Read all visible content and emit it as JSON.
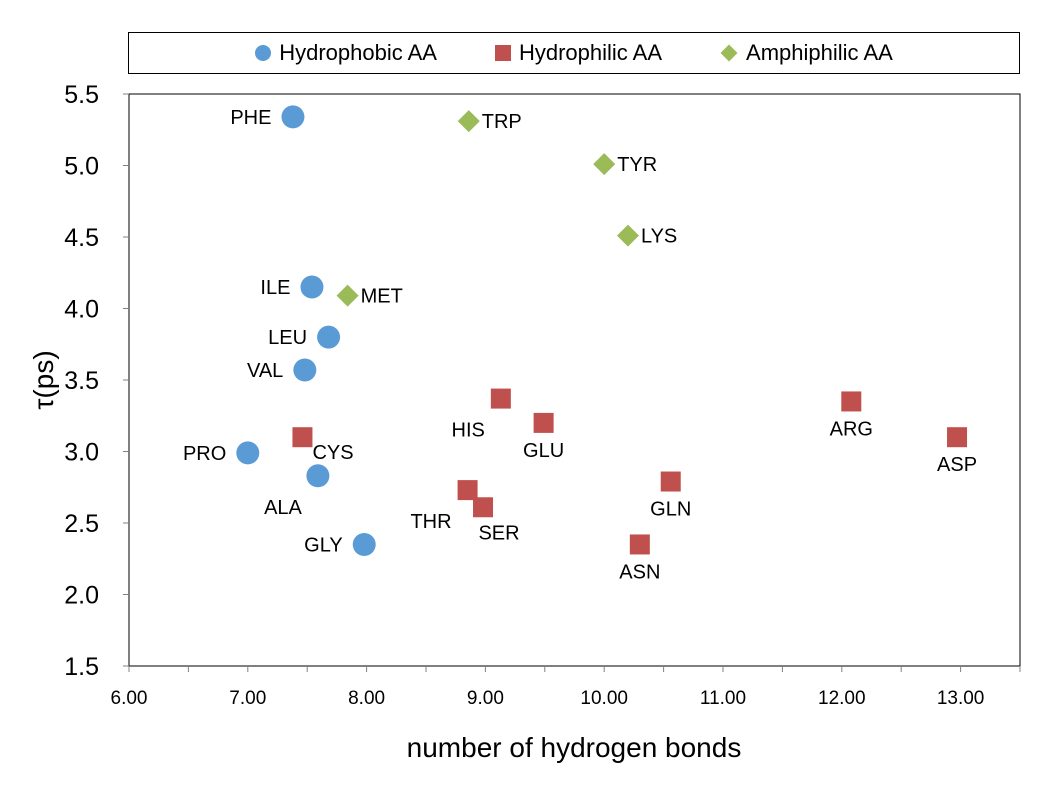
{
  "chart_data": {
    "type": "scatter",
    "title": "",
    "xlabel": "number of hydrogen bonds",
    "ylabel": "τ(ps)",
    "xlim": [
      6.0,
      13.5
    ],
    "ylim": [
      1.5,
      5.5
    ],
    "xticks": [
      "6.00",
      "7.00",
      "8.00",
      "9.00",
      "10.00",
      "11.00",
      "12.00",
      "13.00"
    ],
    "yticks": [
      "1.5",
      "2.0",
      "2.5",
      "3.0",
      "3.5",
      "4.0",
      "4.5",
      "5.0",
      "5.5"
    ],
    "legend_position": "top",
    "series": [
      {
        "name": "Hydrophobic AA",
        "marker": "circle",
        "color": "#5B9BD5",
        "points": [
          {
            "label": "PHE",
            "x": 7.38,
            "y": 5.34,
            "label_pos": "left"
          },
          {
            "label": "ILE",
            "x": 7.54,
            "y": 4.15,
            "label_pos": "left"
          },
          {
            "label": "LEU",
            "x": 7.68,
            "y": 3.8,
            "label_pos": "left"
          },
          {
            "label": "VAL",
            "x": 7.48,
            "y": 3.57,
            "label_pos": "left"
          },
          {
            "label": "PRO",
            "x": 7.0,
            "y": 2.99,
            "label_pos": "left"
          },
          {
            "label": "ALA",
            "x": 7.59,
            "y": 2.83,
            "label_pos": "below-left"
          },
          {
            "label": "GLY",
            "x": 7.98,
            "y": 2.35,
            "label_pos": "left"
          }
        ]
      },
      {
        "name": "Hydrophilic AA",
        "marker": "square",
        "color": "#C0504D",
        "points": [
          {
            "label": "CYS",
            "x": 7.46,
            "y": 3.1,
            "label_pos": "right-below"
          },
          {
            "label": "HIS",
            "x": 9.13,
            "y": 3.37,
            "label_pos": "below-left"
          },
          {
            "label": "GLU",
            "x": 9.49,
            "y": 3.2,
            "label_pos": "below"
          },
          {
            "label": "THR",
            "x": 8.85,
            "y": 2.73,
            "label_pos": "below-left"
          },
          {
            "label": "SER",
            "x": 8.98,
            "y": 2.61,
            "label_pos": "below-right"
          },
          {
            "label": "ASN",
            "x": 10.3,
            "y": 2.35,
            "label_pos": "below"
          },
          {
            "label": "GLN",
            "x": 10.56,
            "y": 2.79,
            "label_pos": "below"
          },
          {
            "label": "ARG",
            "x": 12.08,
            "y": 3.35,
            "label_pos": "below"
          },
          {
            "label": "ASP",
            "x": 12.97,
            "y": 3.1,
            "label_pos": "below"
          }
        ]
      },
      {
        "name": "Amphiphilic AA",
        "marker": "diamond",
        "color": "#9BBB59",
        "points": [
          {
            "label": "TRP",
            "x": 8.86,
            "y": 5.31,
            "label_pos": "right"
          },
          {
            "label": "TYR",
            "x": 10.0,
            "y": 5.01,
            "label_pos": "right"
          },
          {
            "label": "LYS",
            "x": 10.2,
            "y": 4.51,
            "label_pos": "right"
          },
          {
            "label": "MET",
            "x": 7.84,
            "y": 4.09,
            "label_pos": "right"
          }
        ]
      }
    ]
  }
}
